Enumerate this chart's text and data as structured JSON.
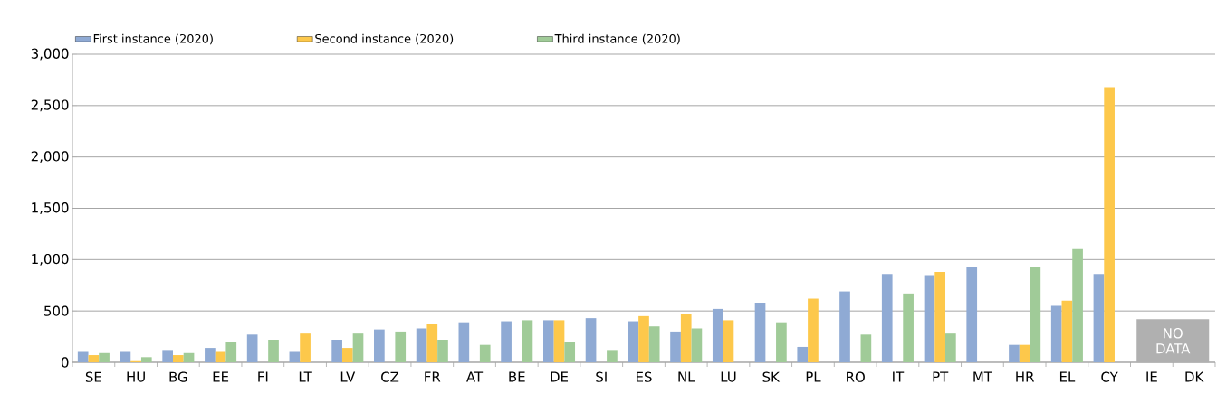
{
  "chart_data": {
    "type": "bar",
    "categories": [
      "SE",
      "HU",
      "BG",
      "EE",
      "FI",
      "LT",
      "LV",
      "CZ",
      "FR",
      "AT",
      "BE",
      "DE",
      "SI",
      "ES",
      "NL",
      "LU",
      "SK",
      "PL",
      "RO",
      "IT",
      "PT",
      "MT",
      "HR",
      "EL",
      "CY",
      "IE",
      "DK"
    ],
    "series": [
      {
        "name": "First instance (2020)",
        "color": "#8faad4",
        "values": [
          110,
          110,
          120,
          140,
          270,
          110,
          220,
          320,
          330,
          390,
          400,
          410,
          430,
          400,
          300,
          520,
          580,
          150,
          690,
          860,
          850,
          930,
          170,
          550,
          860,
          null,
          null
        ]
      },
      {
        "name": "Second instance (2020)",
        "color": "#fdc84b",
        "values": [
          70,
          20,
          70,
          110,
          null,
          280,
          140,
          null,
          370,
          null,
          null,
          410,
          null,
          450,
          470,
          410,
          null,
          620,
          null,
          null,
          880,
          null,
          170,
          600,
          2680,
          null,
          null
        ]
      },
      {
        "name": "Third instance (2020)",
        "color": "#a0cb98",
        "values": [
          90,
          50,
          90,
          200,
          220,
          null,
          280,
          300,
          220,
          170,
          410,
          200,
          120,
          350,
          330,
          null,
          390,
          null,
          270,
          670,
          280,
          null,
          930,
          1110,
          null,
          null,
          null
        ]
      }
    ],
    "ylim": [
      0,
      3000
    ],
    "yticks": [
      0,
      500,
      {
        "value": 1000,
        "label": "1,000"
      },
      {
        "value": 1500,
        "label": "1,500"
      },
      {
        "value": 2000,
        "label": "2,000"
      },
      {
        "value": 2500,
        "label": "2,500"
      },
      {
        "value": 3000,
        "label": "3,000"
      }
    ],
    "grid": "y",
    "legend": "top",
    "annotations": [
      "NO DATA"
    ]
  }
}
